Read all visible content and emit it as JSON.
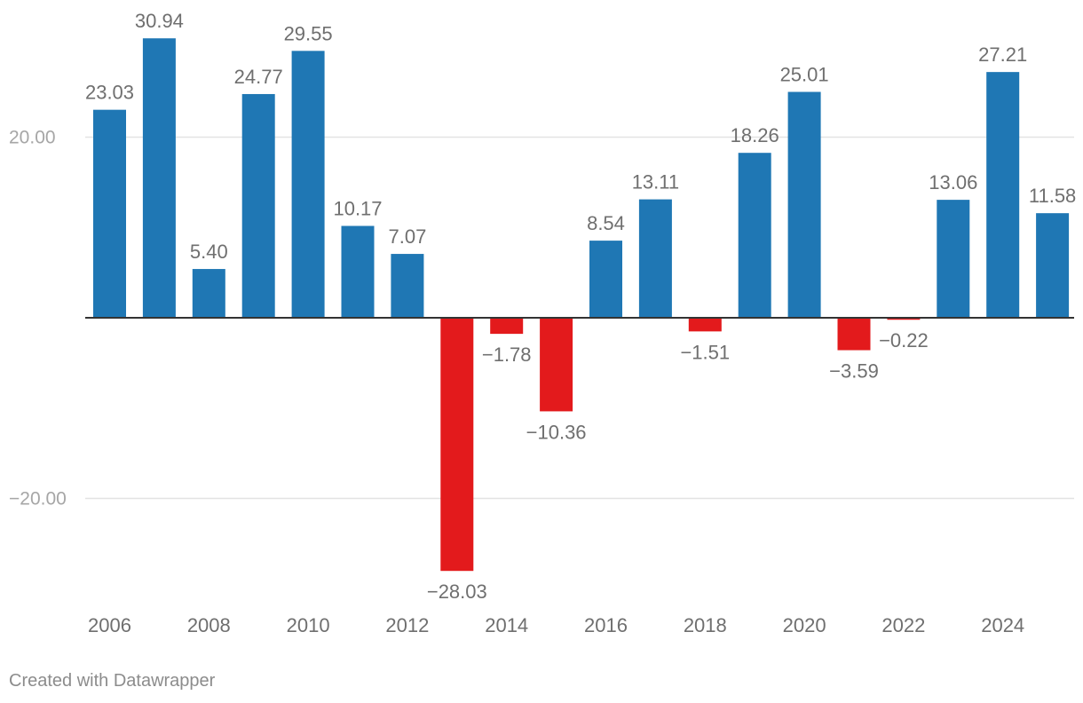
{
  "chart_data": {
    "type": "bar",
    "title": "",
    "xlabel": "",
    "ylabel": "",
    "categories": [
      "2006",
      "2007",
      "2008",
      "2009",
      "2010",
      "2011",
      "2012",
      "2013",
      "2014",
      "2015",
      "2016",
      "2017",
      "2018",
      "2019",
      "2020",
      "2021",
      "2022",
      "2023",
      "2024",
      "2025"
    ],
    "values": [
      23.03,
      30.94,
      5.4,
      24.77,
      29.55,
      10.17,
      7.07,
      -28.03,
      -1.78,
      -10.36,
      8.54,
      13.11,
      -1.51,
      18.26,
      25.01,
      -3.59,
      -0.22,
      13.06,
      27.21,
      11.58
    ],
    "value_labels": [
      "23.03",
      "30.94",
      "5.40",
      "24.77",
      "29.55",
      "10.17",
      "7.07",
      "−28.03",
      "−1.78",
      "−10.36",
      "8.54",
      "13.11",
      "−1.51",
      "18.26",
      "25.01",
      "−3.59",
      "−0.22",
      "13.06",
      "27.21",
      "11.58"
    ],
    "x_tick_labels": [
      "2006",
      "2008",
      "2010",
      "2012",
      "2014",
      "2016",
      "2018",
      "2020",
      "2022",
      "2024"
    ],
    "y_ticks": [
      20,
      -20
    ],
    "y_tick_labels": [
      "20.00",
      "−20.00"
    ],
    "ylim": [
      -32,
      36
    ],
    "grid": true,
    "colors": {
      "positive": "#1f77b4",
      "negative": "#e31a1c",
      "grid": "#e3e3e3",
      "baseline": "#333333",
      "tick_text": "#a6a6a6",
      "axis_text": "#6f6f6f",
      "value_text": "#6f6f6f"
    }
  },
  "footer": {
    "credit": "Created with Datawrapper"
  }
}
